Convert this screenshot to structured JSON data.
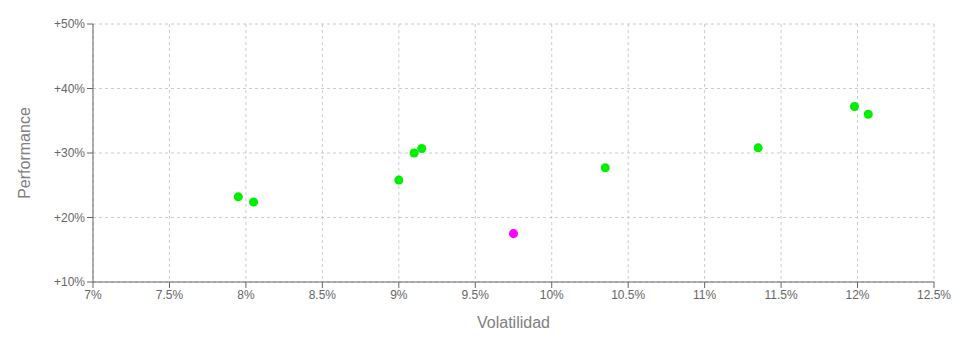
{
  "chart_data": {
    "type": "scatter",
    "xlabel": "Volatilidad",
    "ylabel": "Performance",
    "xlim": [
      0.07,
      0.125
    ],
    "ylim": [
      0.1,
      0.5
    ],
    "xticks": [
      {
        "value": 0.07,
        "label": "7%"
      },
      {
        "value": 0.075,
        "label": "7.5%"
      },
      {
        "value": 0.08,
        "label": "8%"
      },
      {
        "value": 0.085,
        "label": "8.5%"
      },
      {
        "value": 0.09,
        "label": "9%"
      },
      {
        "value": 0.095,
        "label": "9.5%"
      },
      {
        "value": 0.1,
        "label": "10%"
      },
      {
        "value": 0.105,
        "label": "10.5%"
      },
      {
        "value": 0.11,
        "label": "11%"
      },
      {
        "value": 0.115,
        "label": "11.5%"
      },
      {
        "value": 0.12,
        "label": "12%"
      },
      {
        "value": 0.125,
        "label": "12.5%"
      }
    ],
    "yticks": [
      {
        "value": 0.1,
        "label": "+10%"
      },
      {
        "value": 0.2,
        "label": "+20%"
      },
      {
        "value": 0.3,
        "label": "+30%"
      },
      {
        "value": 0.4,
        "label": "+40%"
      },
      {
        "value": 0.5,
        "label": "+50%"
      }
    ],
    "grid": true,
    "series": [
      {
        "color": "#00ee00",
        "x": [
          0.0795,
          0.0805,
          0.09,
          0.091,
          0.0915,
          0.1035,
          0.1135,
          0.1198,
          0.1207
        ],
        "values": [
          0.232,
          0.224,
          0.258,
          0.3,
          0.307,
          0.277,
          0.308,
          0.372,
          0.36
        ]
      },
      {
        "color": "#ff00ff",
        "x": [
          0.0975
        ],
        "values": [
          0.175
        ]
      }
    ]
  }
}
